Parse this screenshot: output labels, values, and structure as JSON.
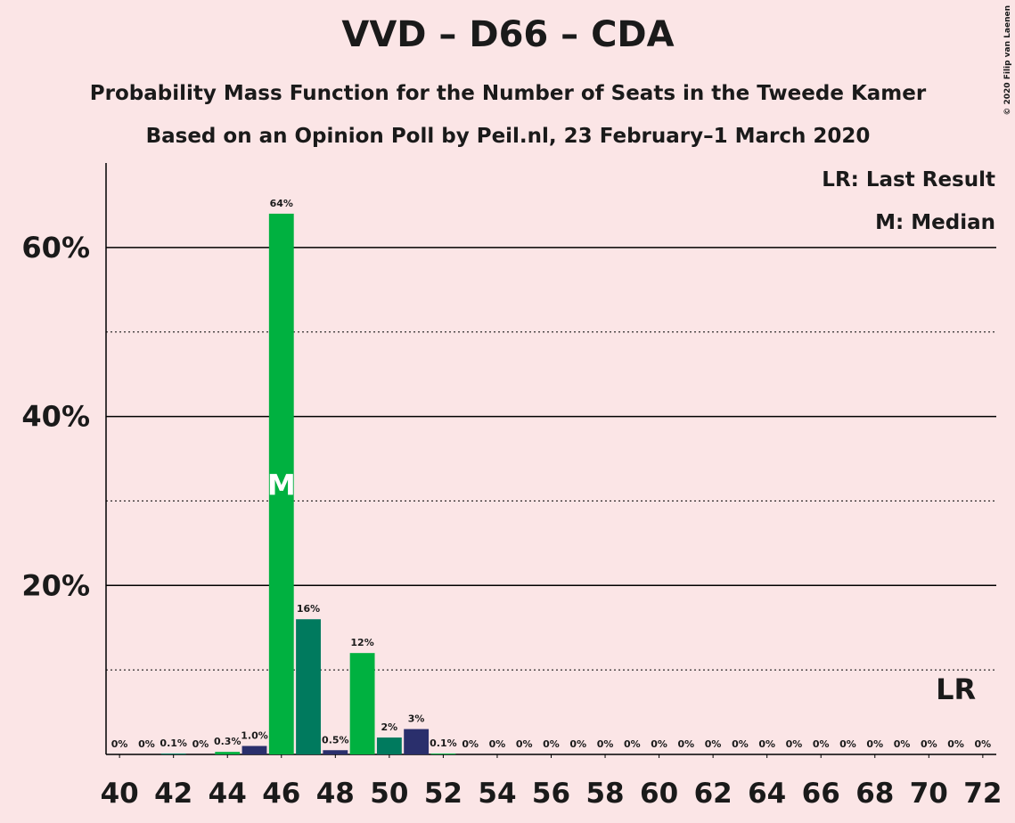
{
  "chart_data": {
    "type": "bar",
    "title": "VVD – D66 – CDA",
    "subtitle": "Probability Mass Function for the Number of Seats in the Tweede Kamer",
    "subtitle2": "Based on an Opinion Poll by Peil.nl, 23 February–1 March 2020",
    "copyright": "© 2020 Filip van Laenen",
    "legend": [
      "LR: Last Result",
      "M: Median"
    ],
    "median_label": "M",
    "median": 46,
    "last_result_label": "LR",
    "last_result": 71,
    "x": [
      40,
      41,
      42,
      43,
      44,
      45,
      46,
      47,
      48,
      49,
      50,
      51,
      52,
      53,
      54,
      55,
      56,
      57,
      58,
      59,
      60,
      61,
      62,
      63,
      64,
      65,
      66,
      67,
      68,
      69,
      70,
      71,
      72
    ],
    "values": [
      0,
      0,
      0.1,
      0,
      0.3,
      1.0,
      64,
      16,
      0.5,
      12,
      2,
      3,
      0.1,
      0,
      0,
      0,
      0,
      0,
      0,
      0,
      0,
      0,
      0,
      0,
      0,
      0,
      0,
      0,
      0,
      0,
      0,
      0,
      0
    ],
    "value_labels": [
      "0%",
      "0%",
      "0.1%",
      "0%",
      "0.3%",
      "1.0%",
      "64%",
      "16%",
      "0.5%",
      "12%",
      "2%",
      "3%",
      "0.1%",
      "0%",
      "0%",
      "0%",
      "0%",
      "0%",
      "0%",
      "0%",
      "0%",
      "0%",
      "0%",
      "0%",
      "0%",
      "0%",
      "0%",
      "0%",
      "0%",
      "0%",
      "0%",
      "0%",
      "0%"
    ],
    "colors": [
      "#2a2f6c",
      "#00b140",
      "#007a5e",
      "#2a2f6c",
      "#00b140",
      "#2a2f6c",
      "#00b140",
      "#007a5e",
      "#2a2f6c",
      "#00b140",
      "#007a5e",
      "#2a2f6c",
      "#00b140",
      "#007a5e",
      "#2a2f6c",
      "#00b140",
      "#007a5e",
      "#2a2f6c",
      "#00b140",
      "#007a5e",
      "#2a2f6c",
      "#00b140",
      "#007a5e",
      "#2a2f6c",
      "#00b140",
      "#007a5e",
      "#2a2f6c",
      "#00b140",
      "#007a5e",
      "#2a2f6c",
      "#00b140",
      "#007a5e",
      "#2a2f6c"
    ],
    "xlim": [
      39.5,
      72.5
    ],
    "xticks": [
      40,
      42,
      44,
      46,
      48,
      50,
      52,
      54,
      56,
      58,
      60,
      62,
      64,
      66,
      68,
      70,
      72
    ],
    "ylim": [
      0,
      70
    ],
    "yticks": [
      {
        "value": 20,
        "label": "20%"
      },
      {
        "value": 40,
        "label": "40%"
      },
      {
        "value": 60,
        "label": "60%"
      }
    ],
    "yminor": [
      10,
      30,
      50
    ],
    "grid": true
  }
}
